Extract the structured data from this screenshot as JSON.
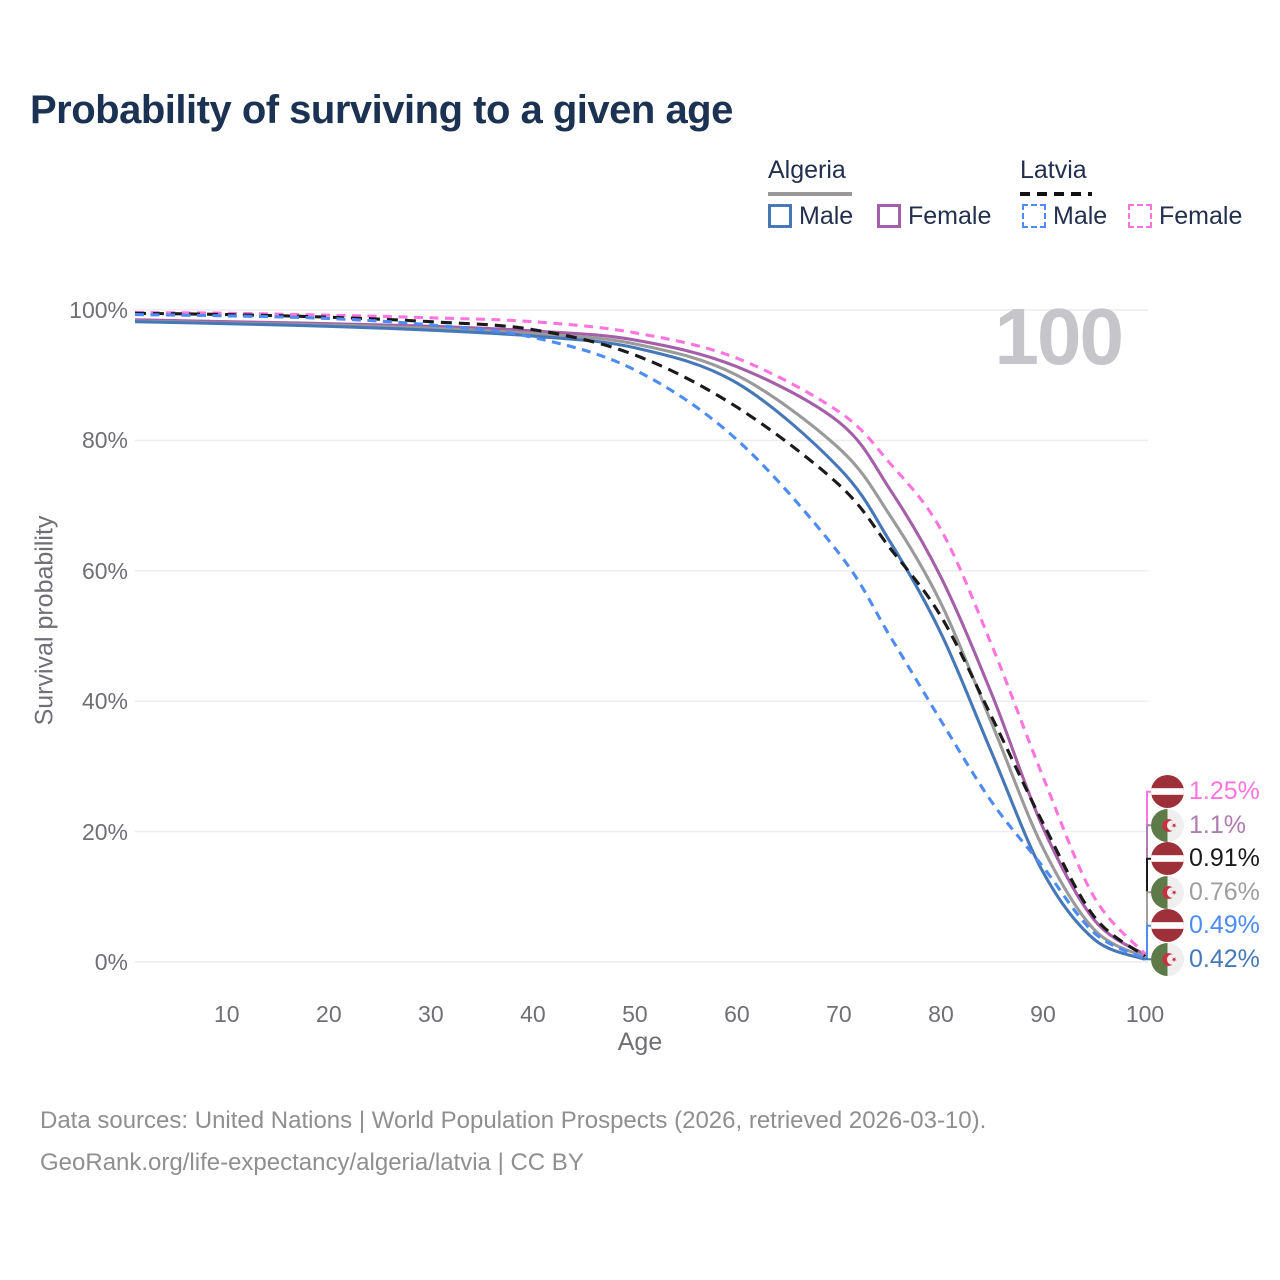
{
  "title": "Probability of surviving to a given age",
  "legend": {
    "groups": [
      {
        "label": "Algeria",
        "underline_style": "solid",
        "underline_color": "#999999",
        "items": [
          {
            "label": "Male",
            "box_color": "#4678B8",
            "box_style": "solid"
          },
          {
            "label": "Female",
            "box_color": "#A55FA8",
            "box_style": "solid"
          }
        ]
      },
      {
        "label": "Latvia",
        "underline_style": "dashed",
        "underline_color": "#111111",
        "items": [
          {
            "label": "Male",
            "box_color": "#4D8BF5",
            "box_style": "dashed"
          },
          {
            "label": "Female",
            "box_color": "#FF74DE",
            "box_style": "dashed"
          }
        ]
      }
    ]
  },
  "chart_data": {
    "type": "line",
    "title": "Probability of surviving to a given age",
    "xlabel": "Age",
    "ylabel": "Survival probability",
    "watermark": "100",
    "xlim": [
      1,
      100
    ],
    "ylim": [
      0,
      100
    ],
    "x_ticks": [
      10,
      20,
      30,
      40,
      50,
      60,
      70,
      80,
      90,
      100
    ],
    "y_ticks": [
      {
        "value": 0,
        "label": "0%"
      },
      {
        "value": 20,
        "label": "20%"
      },
      {
        "value": 40,
        "label": "40%"
      },
      {
        "value": 60,
        "label": "60%"
      },
      {
        "value": 80,
        "label": "80%"
      },
      {
        "value": 100,
        "label": "100%"
      }
    ],
    "grid": "horizontal",
    "legend_position": "top-right",
    "x": [
      1,
      10,
      20,
      30,
      40,
      50,
      60,
      70,
      75,
      80,
      85,
      90,
      95,
      100
    ],
    "series": [
      {
        "name": "Latvia Female",
        "country": "latvia",
        "sex": "female",
        "line_style": "dashed",
        "dash": "9 6.5",
        "color": "#FF74DE",
        "label_color": "#FF74DE",
        "end_label": "1.25%",
        "values": [
          99.6,
          99.5,
          99.2,
          98.8,
          98.2,
          96.5,
          92.6,
          84.4,
          76.5,
          66.3,
          48.5,
          28.4,
          10.0,
          1.25
        ]
      },
      {
        "name": "Algeria Female",
        "country": "algeria",
        "sex": "female",
        "line_style": "solid",
        "dash": "",
        "color": "#A55FA8",
        "label_color": "#AE7CB0",
        "end_label": "1.1%",
        "values": [
          98.5,
          98.2,
          97.9,
          97.5,
          96.8,
          95.4,
          91.3,
          82.8,
          72.5,
          59.0,
          41.0,
          20.6,
          6.5,
          1.1
        ]
      },
      {
        "name": "Latvia Both sexes",
        "country": "latvia",
        "sex": "both",
        "line_style": "dashed",
        "dash": "11 7",
        "color": "#1A1A1A",
        "label_color": "#1A1A1A",
        "end_label": "0.91%",
        "values": [
          99.5,
          99.3,
          98.9,
          98.2,
          97.0,
          93.1,
          85.1,
          73.2,
          63.5,
          53.0,
          37.5,
          21.3,
          7.0,
          0.91
        ]
      },
      {
        "name": "Algeria Both sexes",
        "country": "algeria",
        "sex": "both",
        "line_style": "solid",
        "dash": "",
        "color": "#9A9A9A",
        "label_color": "#9E9E9E",
        "end_label": "0.76%",
        "values": [
          98.3,
          98.0,
          97.7,
          97.2,
          96.4,
          94.8,
          90.0,
          78.8,
          68.5,
          55.0,
          36.5,
          17.5,
          5.0,
          0.76
        ]
      },
      {
        "name": "Latvia Male",
        "country": "latvia",
        "sex": "male",
        "line_style": "dashed",
        "dash": "9 6.5",
        "color": "#4D8BF5",
        "label_color": "#4D8BF5",
        "end_label": "0.49%",
        "values": [
          99.3,
          99.1,
          98.7,
          97.7,
          95.8,
          90.8,
          80.1,
          62.7,
          50.0,
          37.0,
          24.5,
          14.6,
          4.5,
          0.49
        ]
      },
      {
        "name": "Algeria Male",
        "country": "algeria",
        "sex": "male",
        "line_style": "solid",
        "dash": "",
        "color": "#4678B8",
        "label_color": "#4678B8",
        "end_label": "0.42%",
        "values": [
          98.2,
          97.9,
          97.5,
          96.9,
          96.0,
          94.2,
          88.8,
          75.8,
          64.5,
          50.4,
          32.0,
          13.8,
          3.5,
          0.42
        ]
      }
    ]
  },
  "colors": {
    "title_text": "#1C3252",
    "axis_text": "#6F6F74",
    "gridline": "#ECECEF",
    "watermark": "#C6C6CA",
    "footer_text": "#8F8F8F",
    "latvia_flag_red": "#9E3039",
    "latvia_flag_white": "#FFFFFF",
    "algeria_flag_green": "#5E7A49",
    "algeria_flag_white": "#EFEFEF",
    "algeria_flag_red": "#C8313E"
  },
  "footer": {
    "line1": "Data sources: United Nations | World Population Prospects (2026, retrieved 2026-03-10).",
    "line2": "GeoRank.org/life-expectancy/algeria/latvia | CC BY"
  }
}
